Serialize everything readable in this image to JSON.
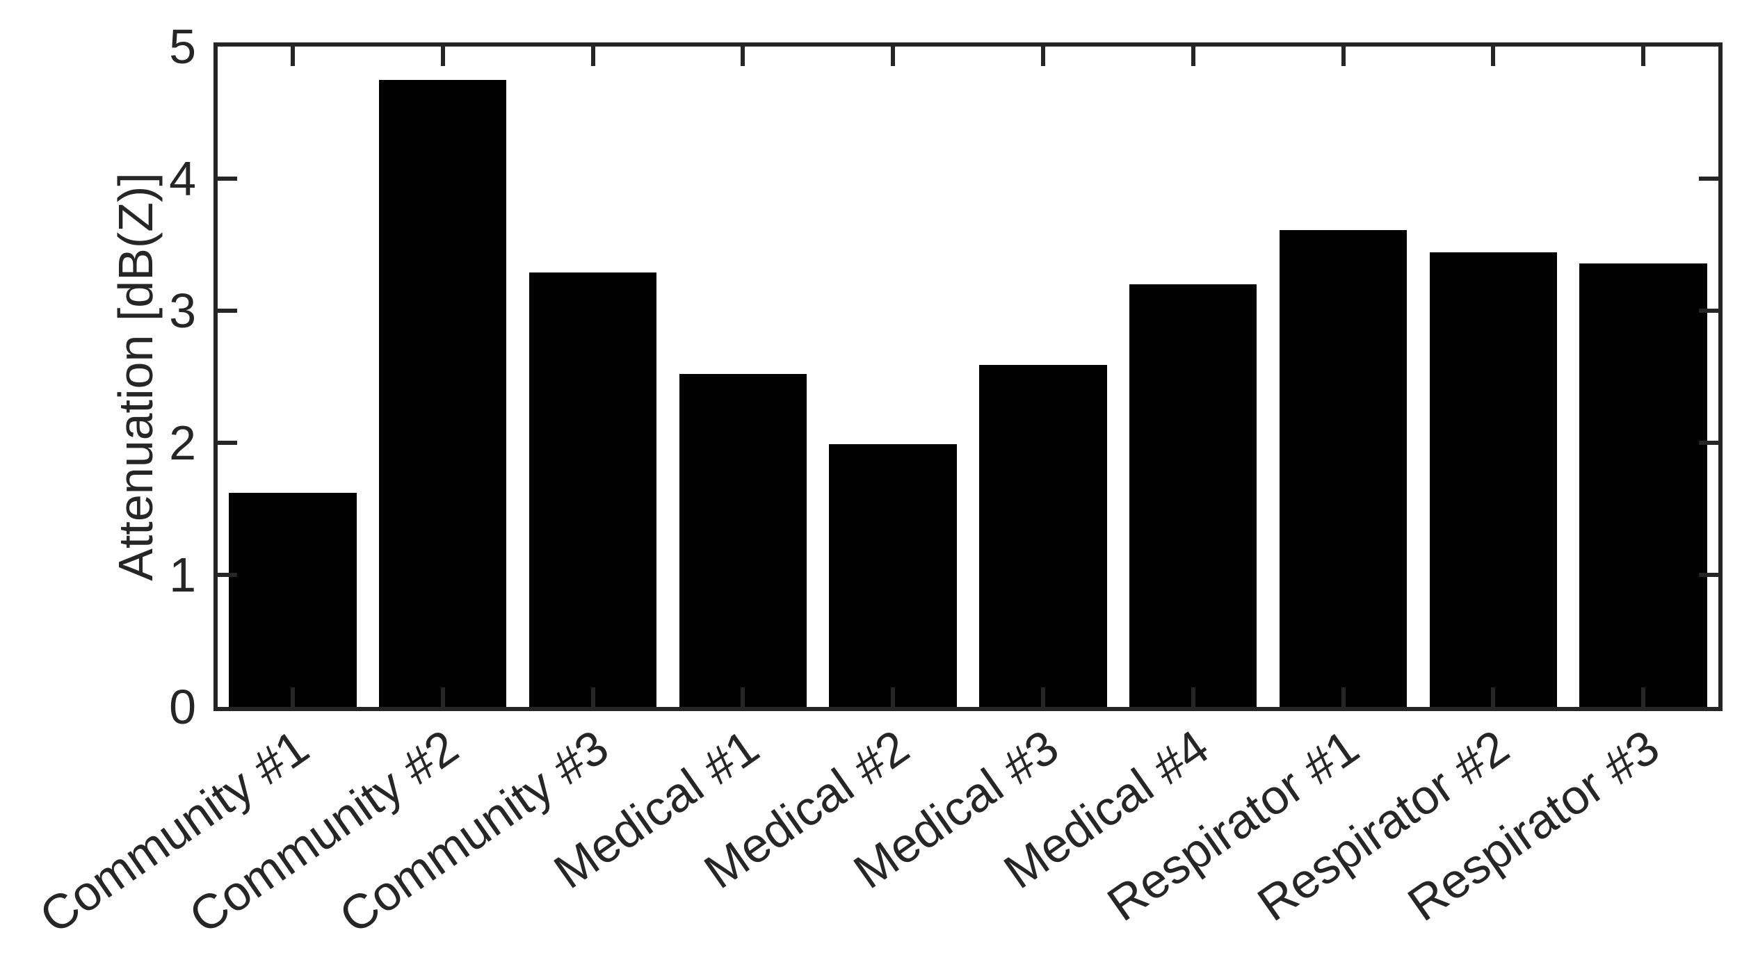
{
  "chart_data": {
    "type": "bar",
    "title": "",
    "categories": [
      "Community #1",
      "Community #2",
      "Community #3",
      "Medical #1",
      "Medical #2",
      "Medical #3",
      "Medical #4",
      "Respirator #1",
      "Respirator #2",
      "Respirator #3"
    ],
    "values": [
      1.62,
      4.75,
      3.29,
      2.52,
      1.99,
      2.59,
      3.2,
      3.61,
      3.44,
      3.36
    ],
    "xlabel": "",
    "ylabel": "Attenuation [dB(Z)]",
    "ylim": [
      0,
      5
    ],
    "ytick_labels": [
      "0",
      "1",
      "2",
      "3",
      "4",
      "5"
    ],
    "ytick_values": [
      0,
      1,
      2,
      3,
      4,
      5
    ],
    "xtick_rotation_deg": 35,
    "bar_width_fraction": 0.85,
    "bar_color": "#000000",
    "axis_color": "#262626",
    "background_color": "#ffffff",
    "grid": "off",
    "legend_position": "none",
    "box": "on",
    "tick_direction": "in"
  }
}
